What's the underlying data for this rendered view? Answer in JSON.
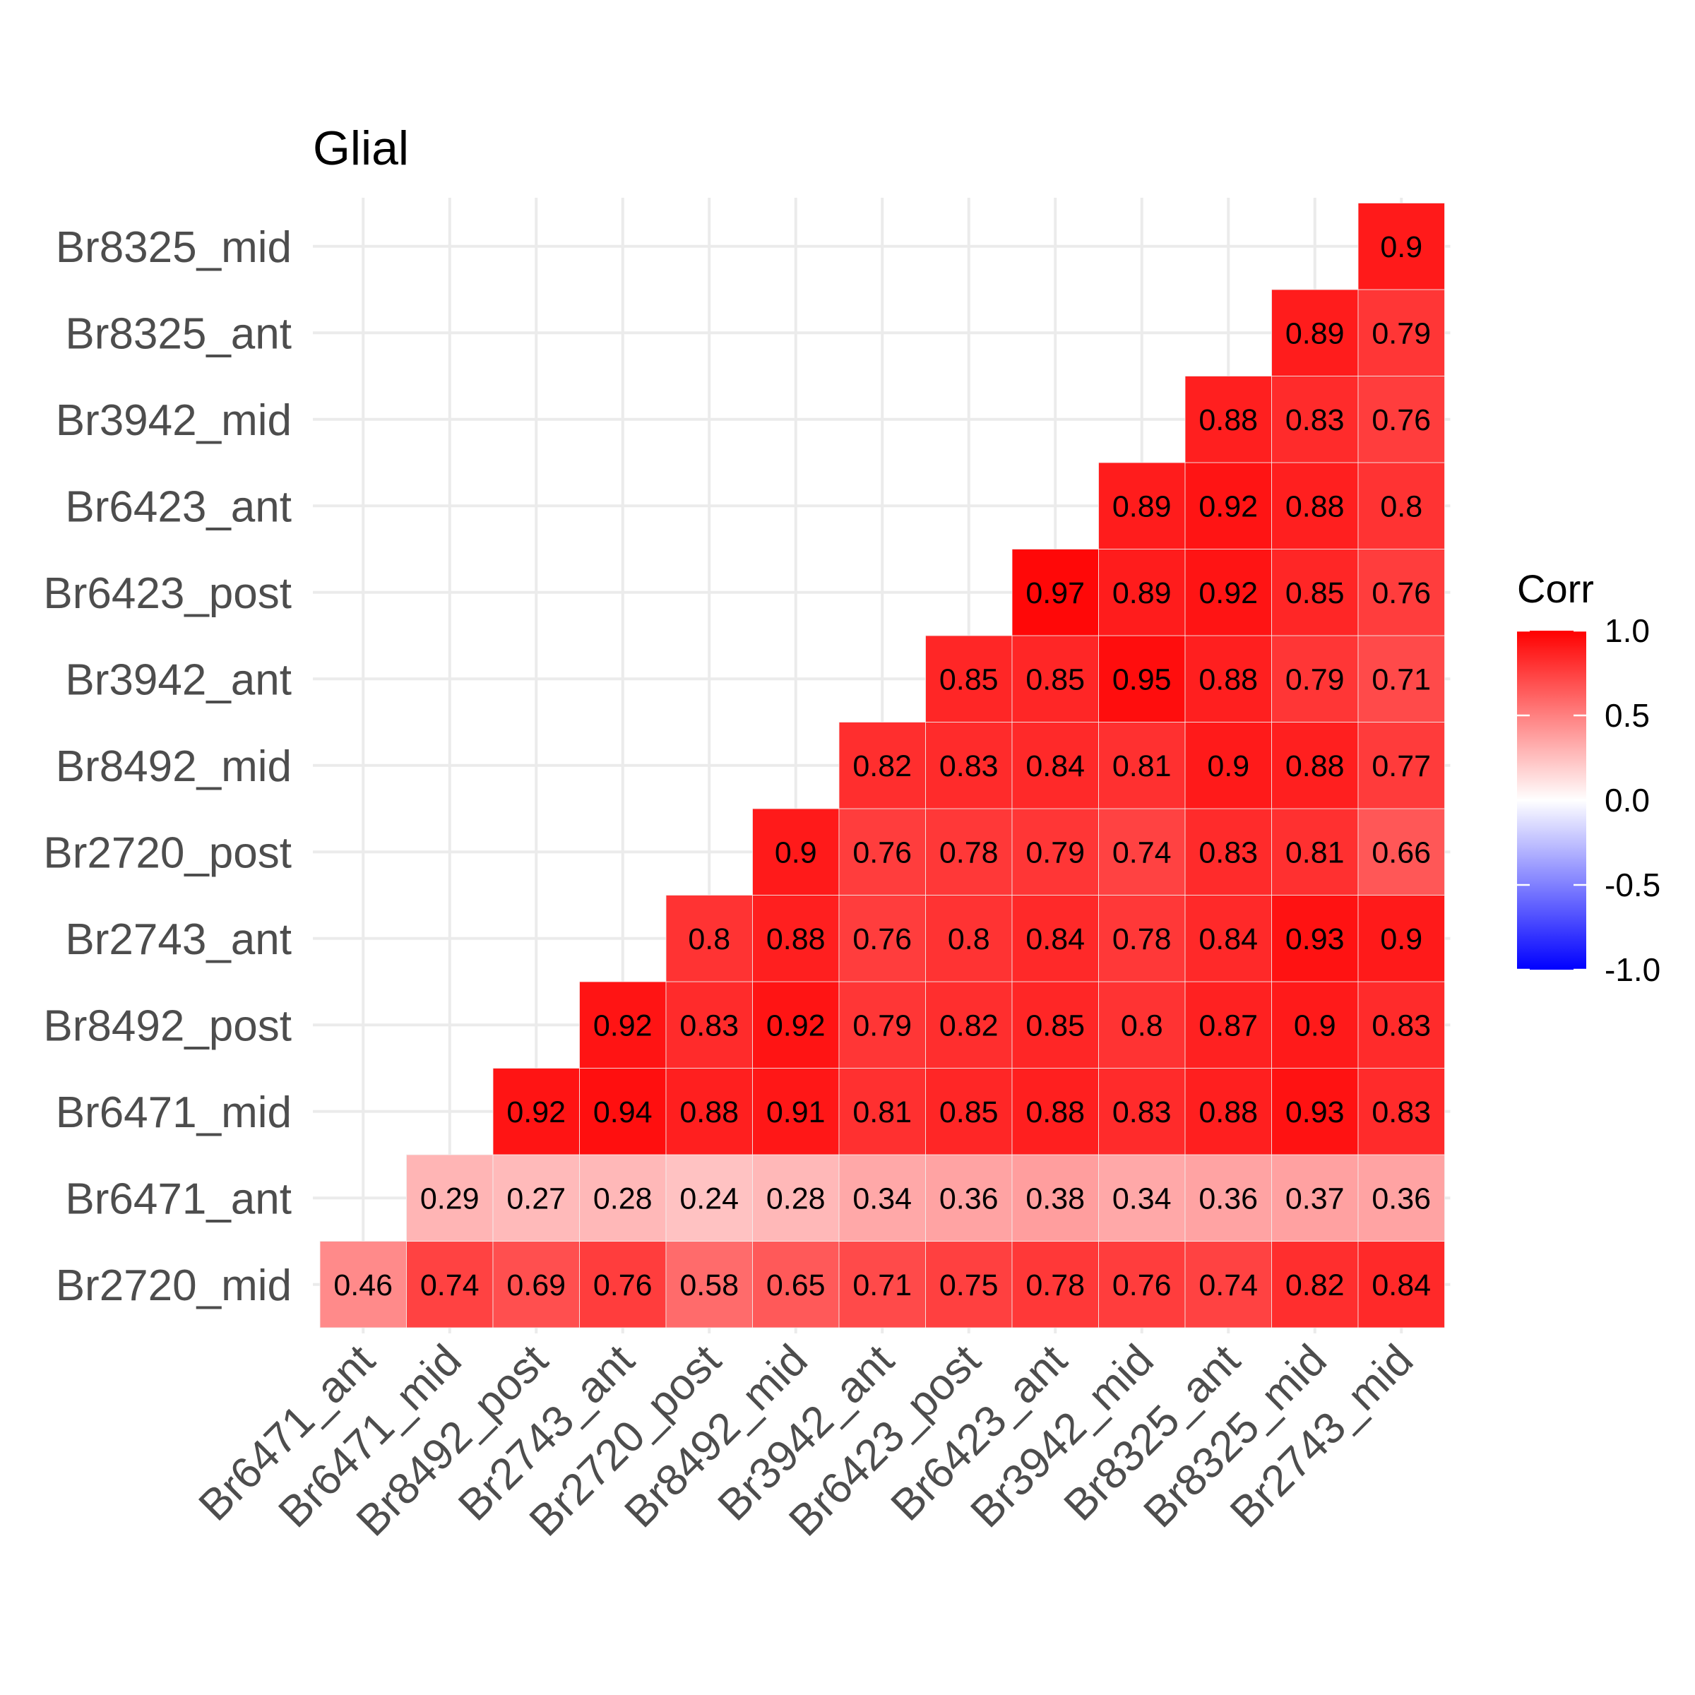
{
  "chart_data": {
    "type": "heatmap",
    "title": "Glial",
    "x_categories": [
      "Br6471_ant",
      "Br6471_mid",
      "Br8492_post",
      "Br2743_ant",
      "Br2720_post",
      "Br8492_mid",
      "Br3942_ant",
      "Br6423_post",
      "Br6423_ant",
      "Br3942_mid",
      "Br8325_ant",
      "Br8325_mid",
      "Br2743_mid"
    ],
    "y_categories": [
      "Br2720_mid",
      "Br6471_ant",
      "Br6471_mid",
      "Br8492_post",
      "Br2743_ant",
      "Br2720_post",
      "Br8492_mid",
      "Br3942_ant",
      "Br6423_post",
      "Br6423_ant",
      "Br3942_mid",
      "Br8325_ant",
      "Br8325_mid"
    ],
    "values": [
      [
        0.46,
        0.74,
        0.69,
        0.76,
        0.58,
        0.65,
        0.71,
        0.75,
        0.78,
        0.76,
        0.74,
        0.82,
        0.84
      ],
      [
        null,
        0.29,
        0.27,
        0.28,
        0.24,
        0.28,
        0.34,
        0.36,
        0.38,
        0.34,
        0.36,
        0.37,
        0.36
      ],
      [
        null,
        null,
        0.92,
        0.94,
        0.88,
        0.91,
        0.81,
        0.85,
        0.88,
        0.83,
        0.88,
        0.93,
        0.83
      ],
      [
        null,
        null,
        null,
        0.92,
        0.83,
        0.92,
        0.79,
        0.82,
        0.85,
        0.8,
        0.87,
        0.9,
        0.83
      ],
      [
        null,
        null,
        null,
        null,
        0.8,
        0.88,
        0.76,
        0.8,
        0.84,
        0.78,
        0.84,
        0.93,
        0.9
      ],
      [
        null,
        null,
        null,
        null,
        null,
        0.9,
        0.76,
        0.78,
        0.79,
        0.74,
        0.83,
        0.81,
        0.66
      ],
      [
        null,
        null,
        null,
        null,
        null,
        null,
        0.82,
        0.83,
        0.84,
        0.81,
        0.9,
        0.88,
        0.77
      ],
      [
        null,
        null,
        null,
        null,
        null,
        null,
        null,
        0.85,
        0.85,
        0.95,
        0.88,
        0.79,
        0.71
      ],
      [
        null,
        null,
        null,
        null,
        null,
        null,
        null,
        null,
        0.97,
        0.89,
        0.92,
        0.85,
        0.76
      ],
      [
        null,
        null,
        null,
        null,
        null,
        null,
        null,
        null,
        null,
        0.89,
        0.92,
        0.88,
        0.8
      ],
      [
        null,
        null,
        null,
        null,
        null,
        null,
        null,
        null,
        null,
        null,
        0.88,
        0.83,
        0.76
      ],
      [
        null,
        null,
        null,
        null,
        null,
        null,
        null,
        null,
        null,
        null,
        null,
        0.89,
        0.79
      ],
      [
        null,
        null,
        null,
        null,
        null,
        null,
        null,
        null,
        null,
        null,
        null,
        null,
        0.9
      ]
    ],
    "value_labels": [
      [
        "0.46",
        "0.74",
        "0.69",
        "0.76",
        "0.58",
        "0.65",
        "0.71",
        "0.75",
        "0.78",
        "0.76",
        "0.74",
        "0.82",
        "0.84"
      ],
      [
        "",
        "0.29",
        "0.27",
        "0.28",
        "0.24",
        "0.28",
        "0.34",
        "0.36",
        "0.38",
        "0.34",
        "0.36",
        "0.37",
        "0.36"
      ],
      [
        "",
        "",
        "0.92",
        "0.94",
        "0.88",
        "0.91",
        "0.81",
        "0.85",
        "0.88",
        "0.83",
        "0.88",
        "0.93",
        "0.83"
      ],
      [
        "",
        "",
        "",
        "0.92",
        "0.83",
        "0.92",
        "0.79",
        "0.82",
        "0.85",
        "0.8",
        "0.87",
        "0.9",
        "0.83"
      ],
      [
        "",
        "",
        "",
        "",
        "0.8",
        "0.88",
        "0.76",
        "0.8",
        "0.84",
        "0.78",
        "0.84",
        "0.93",
        "0.9"
      ],
      [
        "",
        "",
        "",
        "",
        "",
        "0.9",
        "0.76",
        "0.78",
        "0.79",
        "0.74",
        "0.83",
        "0.81",
        "0.66"
      ],
      [
        "",
        "",
        "",
        "",
        "",
        "",
        "0.82",
        "0.83",
        "0.84",
        "0.81",
        "0.9",
        "0.88",
        "0.77"
      ],
      [
        "",
        "",
        "",
        "",
        "",
        "",
        "",
        "0.85",
        "0.85",
        "0.95",
        "0.88",
        "0.79",
        "0.71"
      ],
      [
        "",
        "",
        "",
        "",
        "",
        "",
        "",
        "",
        "0.97",
        "0.89",
        "0.92",
        "0.85",
        "0.76"
      ],
      [
        "",
        "",
        "",
        "",
        "",
        "",
        "",
        "",
        "",
        "0.89",
        "0.92",
        "0.88",
        "0.8"
      ],
      [
        "",
        "",
        "",
        "",
        "",
        "",
        "",
        "",
        "",
        "",
        "0.88",
        "0.83",
        "0.76"
      ],
      [
        "",
        "",
        "",
        "",
        "",
        "",
        "",
        "",
        "",
        "",
        "",
        "0.89",
        "0.79"
      ],
      [
        "",
        "",
        "",
        "",
        "",
        "",
        "",
        "",
        "",
        "",
        "",
        "",
        "0.9"
      ]
    ],
    "color_scale": {
      "low": "#0000FF",
      "mid": "#FFFFFF",
      "high": "#FF0000",
      "limits": [
        -1.0,
        1.0
      ]
    },
    "legend": {
      "title": "Corr",
      "ticks": [
        1.0,
        0.5,
        0.0,
        -0.5,
        -1.0
      ],
      "tick_labels": [
        "1.0",
        "0.5",
        "0.0",
        "-0.5",
        "-1.0"
      ],
      "placement": "right"
    },
    "grid": true
  }
}
